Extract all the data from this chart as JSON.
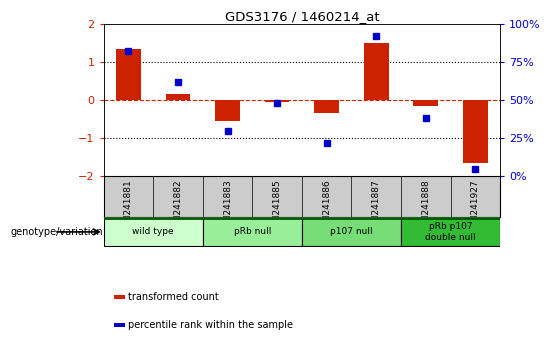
{
  "title": "GDS3176 / 1460214_at",
  "samples": [
    "GSM241881",
    "GSM241882",
    "GSM241883",
    "GSM241885",
    "GSM241886",
    "GSM241887",
    "GSM241888",
    "GSM241927"
  ],
  "bar_values": [
    1.35,
    0.15,
    -0.55,
    -0.05,
    -0.35,
    1.5,
    -0.15,
    -1.65
  ],
  "dot_values": [
    82,
    62,
    30,
    48,
    22,
    92,
    38,
    5
  ],
  "bar_color": "#cc2200",
  "dot_color": "#0000cc",
  "ylim_left": [
    -2,
    2
  ],
  "ylim_right": [
    0,
    100
  ],
  "yticks_left": [
    -2,
    -1,
    0,
    1,
    2
  ],
  "yticks_right": [
    0,
    25,
    50,
    75,
    100
  ],
  "yticklabels_right": [
    "0%",
    "25%",
    "50%",
    "75%",
    "100%"
  ],
  "hlines_dotted": [
    1,
    -1
  ],
  "hline_dashed_red": 0,
  "groups": [
    {
      "label": "wild type",
      "samples": [
        "GSM241881",
        "GSM241882"
      ],
      "color": "#ccffcc"
    },
    {
      "label": "pRb null",
      "samples": [
        "GSM241883",
        "GSM241885"
      ],
      "color": "#99ee99"
    },
    {
      "label": "p107 null",
      "samples": [
        "GSM241886",
        "GSM241887"
      ],
      "color": "#77dd77"
    },
    {
      "label": "pRb p107\ndouble null",
      "samples": [
        "GSM241888",
        "GSM241927"
      ],
      "color": "#33bb33"
    }
  ],
  "legend_items": [
    {
      "label": "transformed count",
      "color": "#cc2200"
    },
    {
      "label": "percentile rank within the sample",
      "color": "#0000cc"
    }
  ],
  "genotype_label": "genotype/variation",
  "bar_width": 0.5,
  "background_color": "#ffffff",
  "plot_bg": "#ffffff",
  "tick_label_area_color": "#cccccc"
}
